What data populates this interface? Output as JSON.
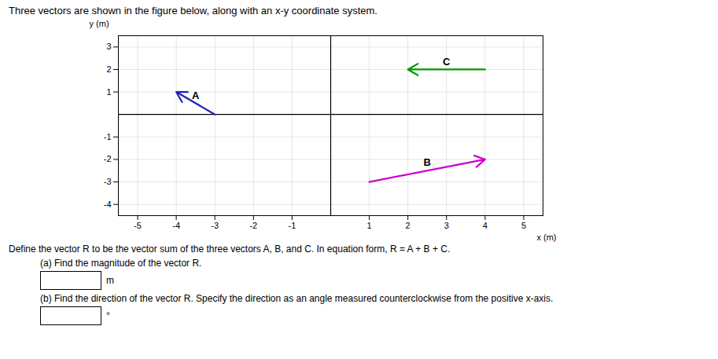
{
  "chart_data": {
    "type": "vector",
    "title": "Three vectors are shown in the figure below, along with an x-y coordinate system.",
    "xlabel": "x (m)",
    "ylabel": "y (m)",
    "xlim": [
      -5.5,
      5.5
    ],
    "ylim": [
      -4.5,
      3.5
    ],
    "xticks": [
      -5,
      -4,
      -3,
      -2,
      -1,
      1,
      2,
      3,
      4,
      5
    ],
    "yticks": [
      -4,
      -3,
      -2,
      -1,
      1,
      2,
      3
    ],
    "grid": true,
    "vectors": [
      {
        "name": "A",
        "tail": [
          -3,
          0
        ],
        "head": [
          -4,
          1
        ],
        "color": "#2222bb"
      },
      {
        "name": "B",
        "tail": [
          1,
          -3
        ],
        "head": [
          4,
          -2
        ],
        "color": "#cc00cc"
      },
      {
        "name": "C",
        "tail": [
          4,
          2
        ],
        "head": [
          2,
          2
        ],
        "color": "#009900"
      }
    ],
    "annotations": [
      "Define the vector R to be the vector sum of the three vectors A, B, and C. In equation form,  R = A + B + C."
    ],
    "parts": [
      {
        "text": "(a) Find the magnitude of the vector R.",
        "unit": "m"
      },
      {
        "text": "(b) Find the direction of the vector R. Specify the direction as an angle measured counterclockwise from the positive x-axis.",
        "unit": "°"
      }
    ]
  }
}
